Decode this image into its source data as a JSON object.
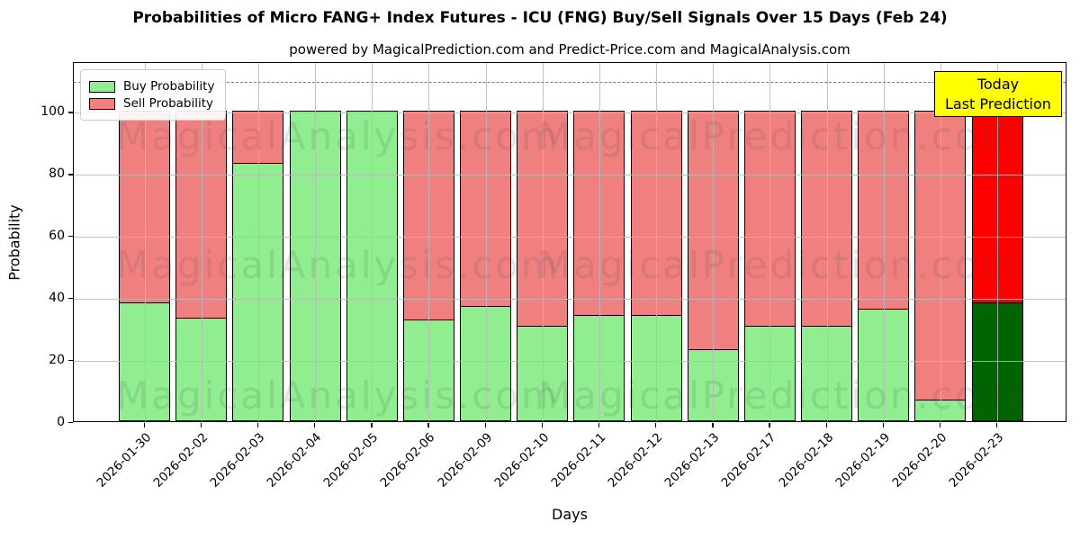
{
  "title": "Probabilities of Micro FANG+ Index Futures - ICU (FNG) Buy/Sell Signals Over 15 Days (Feb 24)",
  "subtitle": "powered by MagicalPrediction.com and Predict-Price.com and MagicalAnalysis.com",
  "legend": {
    "items": [
      {
        "label": "Buy Probability",
        "color": "#90EE90"
      },
      {
        "label": "Sell Probability",
        "color": "#F08080"
      }
    ]
  },
  "annotation": {
    "line1": "Today",
    "line2": "Last Prediction",
    "bg_color": "#FFFF00"
  },
  "watermarks": [
    "MagicalAnalysis.com",
    "MagicalPrediction.com"
  ],
  "colors": {
    "buy": "#90EE90",
    "sell": "#F08080",
    "buy_last_bar": "#006400",
    "sell_last_bar": "#FF0000",
    "bar_edge": "#000000",
    "grid": "#B9B9B9",
    "dashed_line": "#7A7A7A"
  },
  "chart_data": {
    "type": "bar",
    "stacked": true,
    "title": "Probabilities of Micro FANG+ Index Futures - ICU (FNG) Buy/Sell Signals Over 15 Days (Feb 24)",
    "xlabel": "Days",
    "ylabel": "Probability",
    "categories": [
      "2026-01-30",
      "2026-02-02",
      "2026-02-03",
      "2026-02-04",
      "2026-02-05",
      "2026-02-06",
      "2026-02-09",
      "2026-02-10",
      "2026-02-11",
      "2026-02-12",
      "2026-02-13",
      "2026-02-17",
      "2026-02-18",
      "2026-02-19",
      "2026-02-20",
      "2026-02-23"
    ],
    "series": [
      {
        "name": "Buy Probability",
        "values": [
          38.5,
          33.5,
          83.3,
          100,
          100,
          33,
          37.3,
          30.8,
          34.3,
          34.3,
          23.3,
          30.8,
          30.8,
          36.3,
          7,
          38.5
        ]
      },
      {
        "name": "Sell Probability",
        "values": [
          61.5,
          66.5,
          16.7,
          0,
          0,
          67,
          62.7,
          69.2,
          65.7,
          65.7,
          76.7,
          69.2,
          69.2,
          63.7,
          93,
          61.5
        ]
      }
    ],
    "ylim": [
      0,
      116
    ],
    "yticks": [
      0,
      20,
      40,
      60,
      80,
      100
    ],
    "dashed_threshold_y": 110,
    "grid": true,
    "legend_position": "upper left",
    "last_bar_highlight": "2026-02-23"
  }
}
